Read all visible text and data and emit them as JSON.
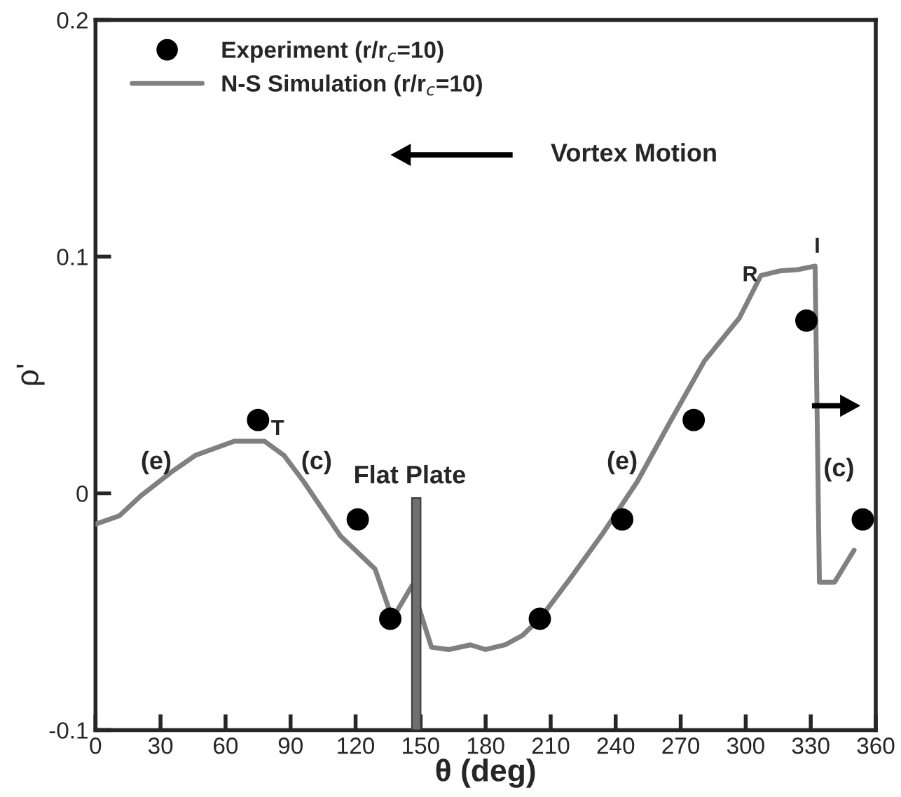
{
  "chart_data": {
    "type": "line",
    "xlabel": "θ (deg)",
    "ylabel": "ρ'",
    "xlim": [
      0,
      360
    ],
    "xticks": [
      0,
      30,
      60,
      90,
      120,
      150,
      180,
      210,
      240,
      270,
      300,
      330,
      360
    ],
    "ylim": [
      -0.1,
      0.2
    ],
    "yticks": [
      -0.1,
      0,
      0.1,
      0.2
    ],
    "grid": false,
    "legend": "top left",
    "series": [
      {
        "name": "Experiment (r/r$_{c}$=10)",
        "type": "scatter",
        "marker": "circle",
        "color": "#000000",
        "x": [
          75,
          121,
          136,
          205,
          243,
          276,
          328,
          354
        ],
        "values": [
          0.031,
          -0.011,
          -0.053,
          -0.053,
          -0.011,
          0.031,
          0.073,
          -0.011
        ]
      },
      {
        "name": "N-S Simulation (r/r$_{c}$=10)",
        "marker": "none",
        "line_style": "solid",
        "color": "#808080",
        "x": [
          0,
          11,
          21,
          35,
          46,
          64,
          78,
          87,
          96,
          113,
          129,
          137,
          146,
          155,
          163,
          173,
          180,
          189,
          197,
          205,
          219,
          234,
          250,
          265,
          281,
          297,
          307,
          316,
          324,
          332,
          334,
          341,
          350
        ],
        "values": [
          -0.013,
          -0.0095,
          -0.001,
          0.009,
          0.016,
          0.022,
          0.022,
          0.016,
          0.005,
          -0.018,
          -0.032,
          -0.053,
          -0.039,
          -0.065,
          -0.066,
          -0.064,
          -0.066,
          -0.064,
          -0.06,
          -0.053,
          -0.036,
          -0.017,
          0.005,
          0.03,
          0.056,
          0.074,
          0.092,
          0.094,
          0.0945,
          0.096,
          -0.0375,
          -0.0375,
          -0.024
        ]
      }
    ],
    "annotations": [
      "T",
      "R",
      "I",
      "(e)",
      "(c)",
      "(e)",
      "(c)",
      "Flat Plate",
      "Vortex Motion"
    ]
  }
}
